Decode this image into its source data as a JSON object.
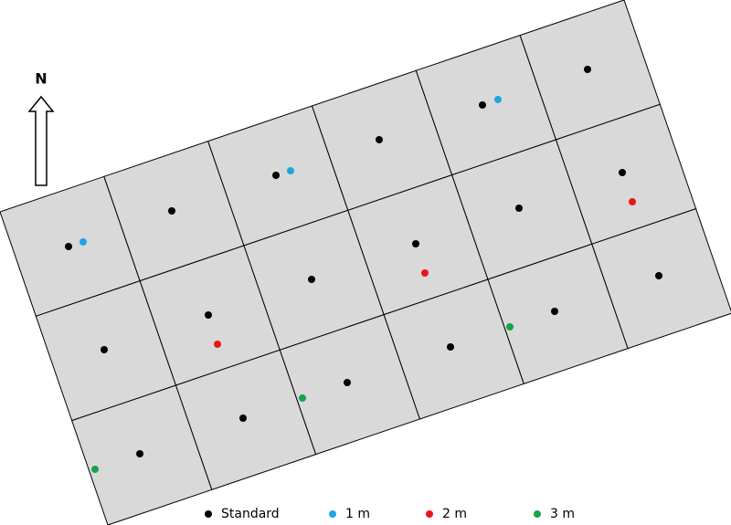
{
  "north": "N",
  "legend": [
    {
      "label": "Standard",
      "color": "#000000"
    },
    {
      "label": "1 m",
      "color": "#1ea6e0"
    },
    {
      "label": "2 m",
      "color": "#e8161b"
    },
    {
      "label": "3 m",
      "color": "#16a34a"
    }
  ]
}
